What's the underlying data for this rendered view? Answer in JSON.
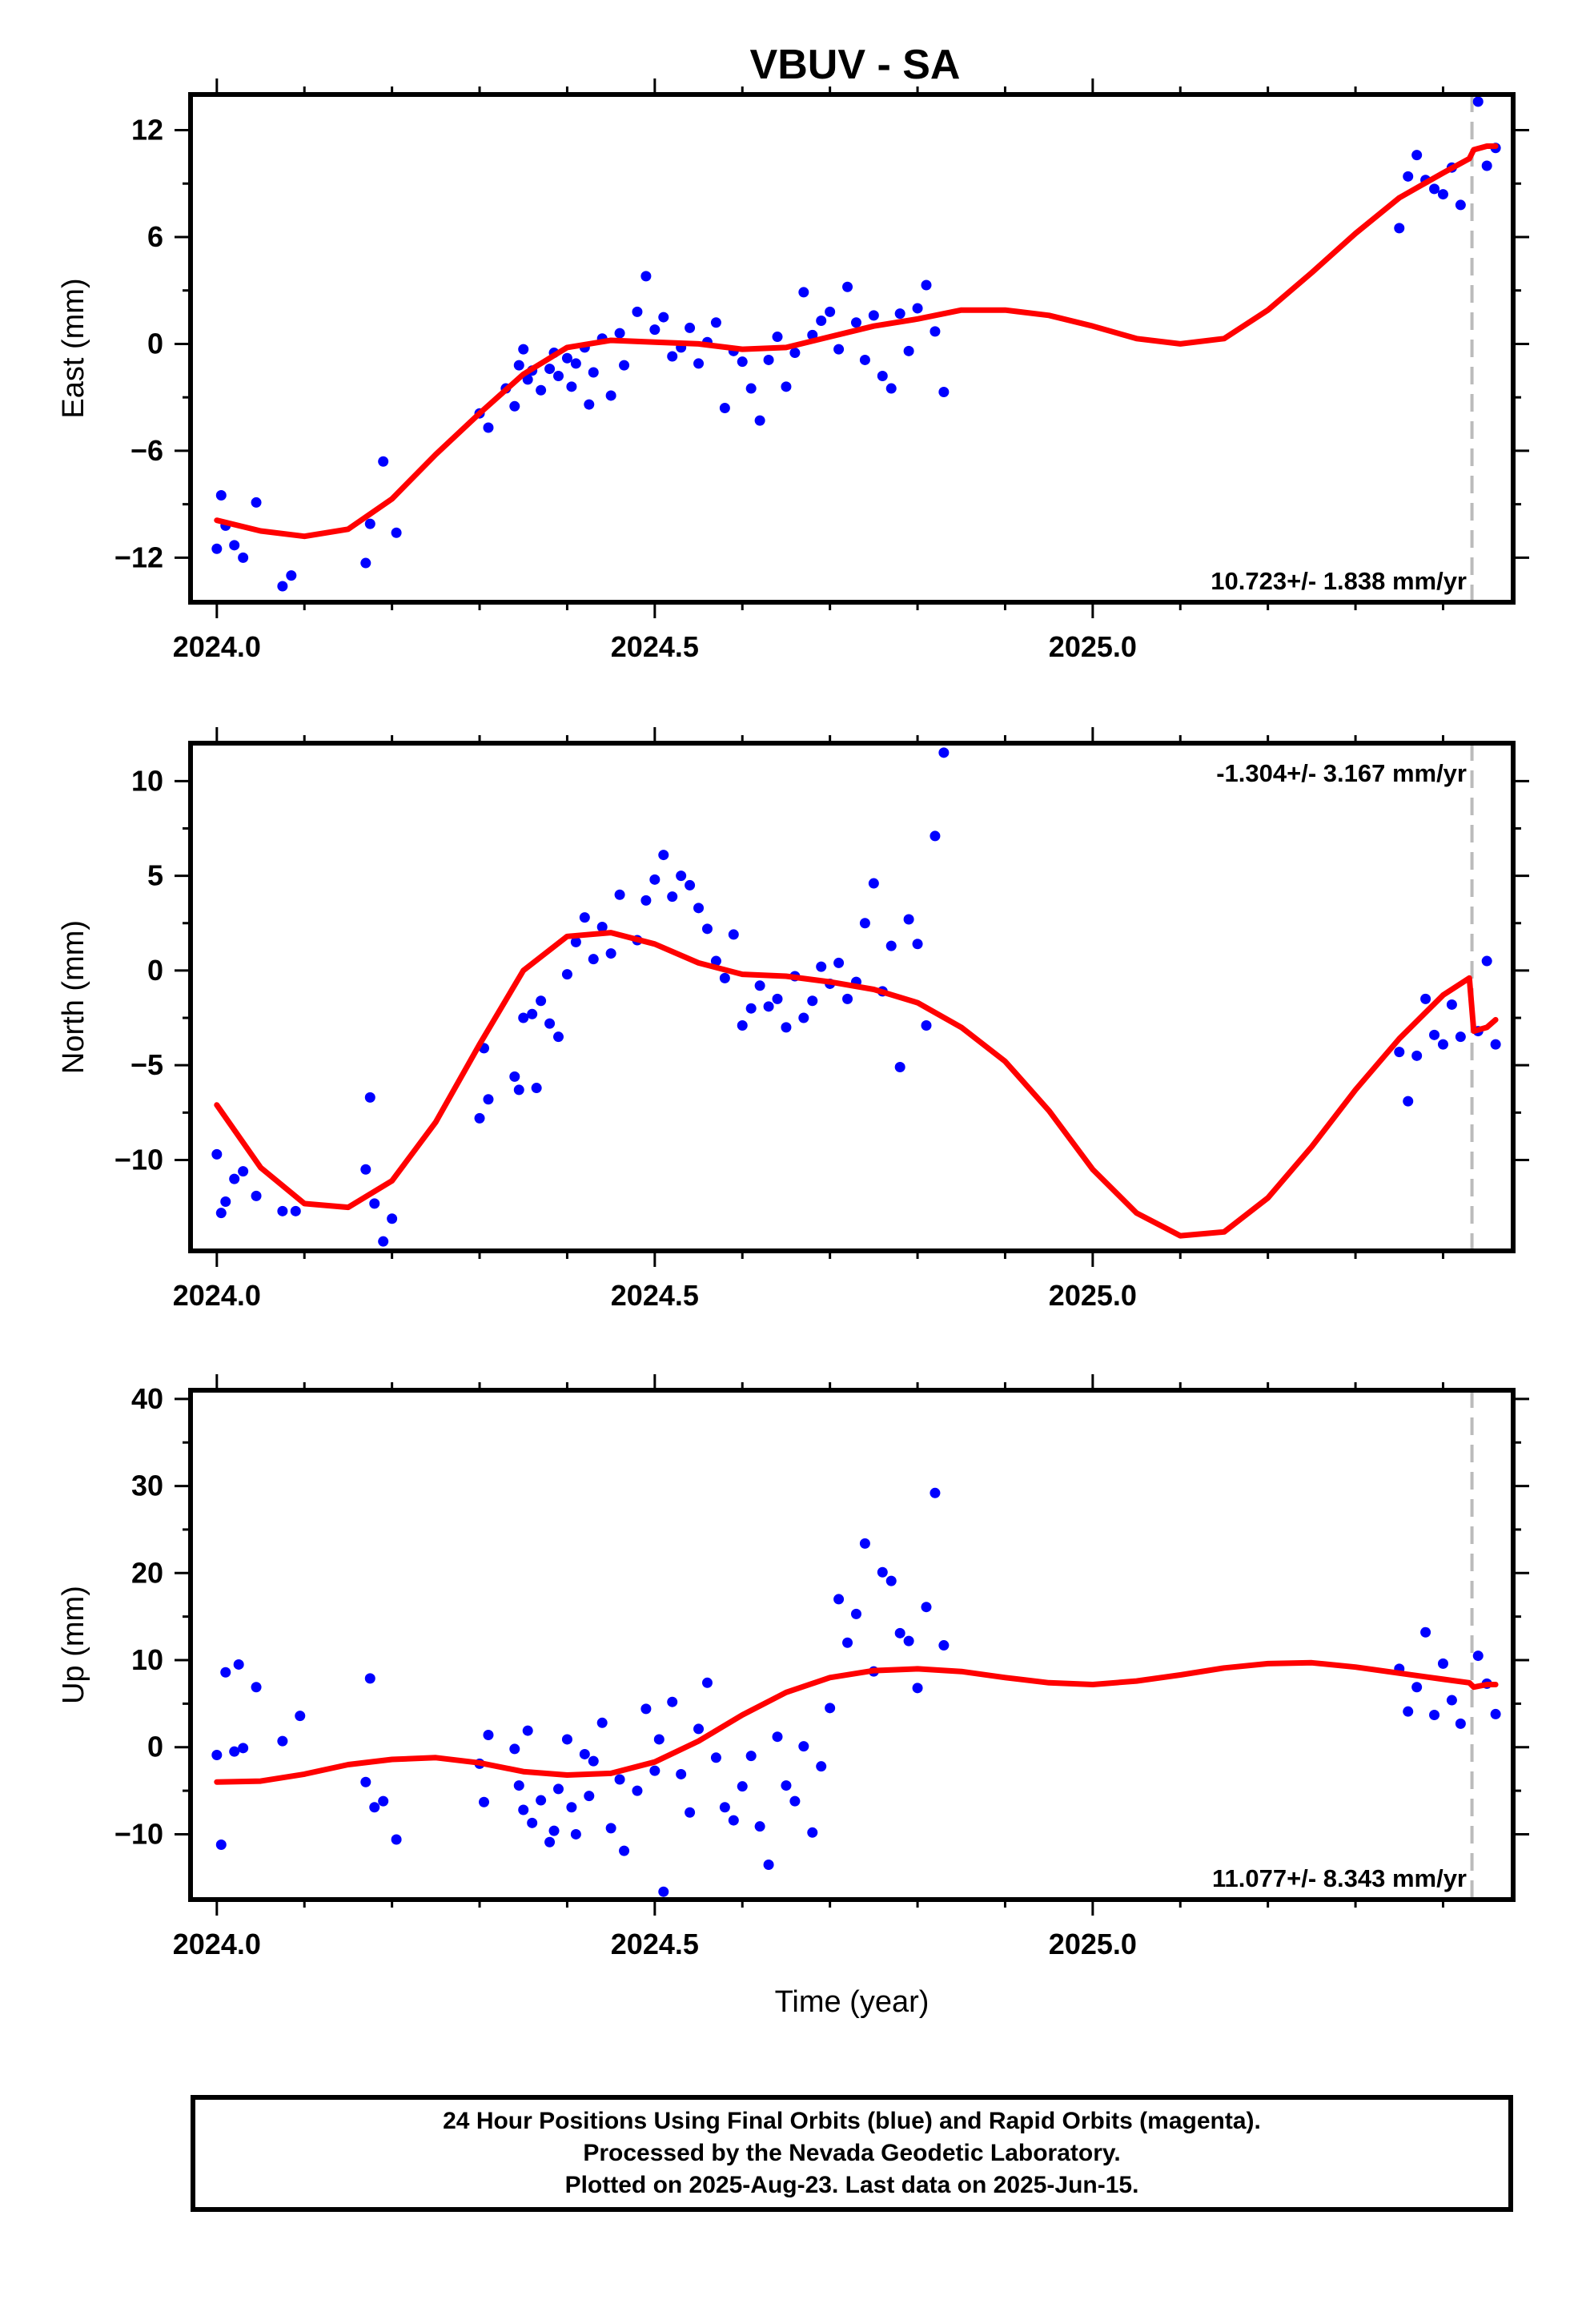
{
  "figure": {
    "title": "VBUV - SA",
    "xlabel": "Time (year)",
    "x_ticks": [
      2024.0,
      2024.5,
      2025.0
    ],
    "x_tick_labels": [
      "2024.0",
      "2024.5",
      "2025.0"
    ],
    "xlim": [
      2023.97,
      2025.48
    ],
    "colors": {
      "points": "#0000ff",
      "model": "#ff0000",
      "frame": "#000000",
      "marker_line": "#bbbbbb"
    },
    "last_data_marker": 2025.433
  },
  "chart_data": [
    {
      "type": "scatter",
      "panel": "east",
      "ylabel": "East (mm)",
      "ylim": [
        -14.5,
        14
      ],
      "y_ticks": [
        -12,
        -6,
        0,
        6,
        12
      ],
      "rate_text": "10.723+/- 1.838 mm/yr",
      "rate_position": "bottom-right",
      "series": [
        {
          "kind": "points",
          "x": [
            2024.0,
            2024.005,
            2024.01,
            2024.02,
            2024.03,
            2024.045,
            2024.075,
            2024.085,
            2024.17,
            2024.175,
            2024.19,
            2024.205,
            2024.3,
            2024.31,
            2024.33,
            2024.34,
            2024.345,
            2024.35,
            2024.355,
            2024.36,
            2024.37,
            2024.38,
            2024.385,
            2024.39,
            2024.4,
            2024.405,
            2024.41,
            2024.42,
            2024.425,
            2024.43,
            2024.44,
            2024.45,
            2024.46,
            2024.465,
            2024.48,
            2024.49,
            2024.5,
            2024.51,
            2024.52,
            2024.53,
            2024.54,
            2024.55,
            2024.56,
            2024.57,
            2024.58,
            2024.59,
            2024.6,
            2024.61,
            2024.62,
            2024.63,
            2024.64,
            2024.65,
            2024.66,
            2024.67,
            2024.68,
            2024.69,
            2024.7,
            2024.71,
            2024.72,
            2024.73,
            2024.74,
            2024.75,
            2024.76,
            2024.77,
            2024.78,
            2024.79,
            2024.8,
            2024.81,
            2024.82,
            2024.83,
            2025.35,
            2025.36,
            2025.37,
            2025.38,
            2025.39,
            2025.4,
            2025.41,
            2025.42,
            2025.44,
            2025.45,
            2025.46
          ],
          "y": [
            -11.5,
            -8.5,
            -10.2,
            -11.3,
            -12,
            -8.9,
            -13.6,
            -13,
            -12.3,
            -10.1,
            -6.6,
            -10.6,
            -3.9,
            -4.7,
            -2.5,
            -3.5,
            -1.2,
            -0.3,
            -2,
            -1.5,
            -2.6,
            -1.4,
            -0.5,
            -1.8,
            -0.8,
            -2.4,
            -1.1,
            -0.2,
            -3.4,
            -1.6,
            0.3,
            -2.9,
            0.6,
            -1.2,
            1.8,
            3.8,
            0.8,
            1.5,
            -0.7,
            -0.2,
            0.9,
            -1.1,
            0.1,
            1.2,
            -3.6,
            -0.4,
            -1,
            -2.5,
            -4.3,
            -0.9,
            0.4,
            -2.4,
            -0.5,
            2.9,
            0.5,
            1.3,
            1.8,
            -0.3,
            3.2,
            1.2,
            -0.9,
            1.6,
            -1.8,
            -2.5,
            1.7,
            -0.4,
            2,
            3.3,
            0.7,
            -2.7,
            6.5,
            9.4,
            10.6,
            9.2,
            8.7,
            8.4,
            9.9,
            7.8,
            13.6,
            10,
            11
          ]
        },
        {
          "kind": "model",
          "x": [
            2024.0,
            2024.05,
            2024.1,
            2024.15,
            2024.2,
            2024.25,
            2024.3,
            2024.35,
            2024.4,
            2024.45,
            2024.5,
            2024.55,
            2024.6,
            2024.65,
            2024.7,
            2024.75,
            2024.8,
            2024.85,
            2024.9,
            2024.95,
            2025.0,
            2025.05,
            2025.1,
            2025.15,
            2025.2,
            2025.25,
            2025.3,
            2025.35,
            2025.4,
            2025.43,
            2025.435,
            2025.45,
            2025.46
          ],
          "y": [
            -9.9,
            -10.5,
            -10.8,
            -10.4,
            -8.7,
            -6.2,
            -3.9,
            -1.7,
            -0.2,
            0.2,
            0.1,
            0,
            -0.3,
            -0.2,
            0.4,
            1,
            1.4,
            1.9,
            1.9,
            1.6,
            1,
            0.3,
            0,
            0.3,
            1.9,
            4,
            6.2,
            8.2,
            9.6,
            10.4,
            10.9,
            11.1,
            11.1
          ]
        }
      ]
    },
    {
      "type": "scatter",
      "panel": "north",
      "ylabel": "North (mm)",
      "ylim": [
        -14.8,
        12
      ],
      "y_ticks": [
        -10,
        -5,
        0,
        5,
        10
      ],
      "rate_text": "-1.304+/- 3.167 mm/yr",
      "rate_position": "top-right",
      "series": [
        {
          "kind": "points",
          "x": [
            2024.0,
            2024.005,
            2024.01,
            2024.02,
            2024.03,
            2024.045,
            2024.075,
            2024.09,
            2024.17,
            2024.175,
            2024.18,
            2024.19,
            2024.2,
            2024.3,
            2024.305,
            2024.31,
            2024.34,
            2024.345,
            2024.35,
            2024.36,
            2024.365,
            2024.37,
            2024.38,
            2024.39,
            2024.4,
            2024.41,
            2024.42,
            2024.43,
            2024.44,
            2024.45,
            2024.46,
            2024.48,
            2024.49,
            2024.5,
            2024.51,
            2024.52,
            2024.53,
            2024.54,
            2024.55,
            2024.56,
            2024.57,
            2024.58,
            2024.59,
            2024.6,
            2024.61,
            2024.62,
            2024.63,
            2024.64,
            2024.65,
            2024.66,
            2024.67,
            2024.68,
            2024.69,
            2024.7,
            2024.71,
            2024.72,
            2024.73,
            2024.74,
            2024.75,
            2024.76,
            2024.77,
            2024.78,
            2024.79,
            2024.8,
            2024.81,
            2024.82,
            2024.83,
            2025.35,
            2025.36,
            2025.37,
            2025.38,
            2025.39,
            2025.4,
            2025.41,
            2025.42,
            2025.44,
            2025.45,
            2025.46
          ],
          "y": [
            -9.7,
            -12.8,
            -12.2,
            -11,
            -10.6,
            -11.9,
            -12.7,
            -12.7,
            -10.5,
            -6.7,
            -12.3,
            -14.3,
            -13.1,
            -7.8,
            -4.1,
            -6.8,
            -5.6,
            -6.3,
            -2.5,
            -2.3,
            -6.2,
            -1.6,
            -2.8,
            -3.5,
            -0.2,
            1.5,
            2.8,
            0.6,
            2.3,
            0.9,
            4,
            1.6,
            3.7,
            4.8,
            6.1,
            3.9,
            5,
            4.5,
            3.3,
            2.2,
            0.5,
            -0.4,
            1.9,
            -2.9,
            -2,
            -0.8,
            -1.9,
            -1.5,
            -3,
            -0.3,
            -2.5,
            -1.6,
            0.2,
            -0.7,
            0.4,
            -1.5,
            -0.6,
            2.5,
            4.6,
            -1.1,
            1.3,
            -5.1,
            2.7,
            1.4,
            -2.9,
            7.1,
            11.5,
            -4.3,
            -6.9,
            -4.5,
            -1.5,
            -3.4,
            -3.9,
            -1.8,
            -3.5,
            -3.2,
            0.5,
            -3.9
          ]
        },
        {
          "kind": "model",
          "x": [
            2024.0,
            2024.05,
            2024.1,
            2024.15,
            2024.2,
            2024.25,
            2024.3,
            2024.35,
            2024.4,
            2024.45,
            2024.5,
            2024.55,
            2024.6,
            2024.65,
            2024.7,
            2024.75,
            2024.8,
            2024.85,
            2024.9,
            2024.95,
            2025.0,
            2025.05,
            2025.1,
            2025.15,
            2025.2,
            2025.25,
            2025.3,
            2025.35,
            2025.4,
            2025.43,
            2025.435,
            2025.45,
            2025.46
          ],
          "y": [
            -7.1,
            -10.4,
            -12.3,
            -12.5,
            -11.1,
            -8,
            -3.9,
            0,
            1.8,
            2,
            1.4,
            0.4,
            -0.2,
            -0.3,
            -0.6,
            -1,
            -1.7,
            -3,
            -4.8,
            -7.4,
            -10.5,
            -12.8,
            -14,
            -13.8,
            -12,
            -9.3,
            -6.3,
            -3.6,
            -1.3,
            -0.4,
            -3.2,
            -3,
            -2.6
          ]
        }
      ]
    },
    {
      "type": "scatter",
      "panel": "up",
      "ylabel": "Up (mm)",
      "ylim": [
        -17.5,
        41
      ],
      "y_ticks": [
        -10,
        0,
        10,
        20,
        30,
        40
      ],
      "rate_text": "11.077+/- 8.343 mm/yr",
      "rate_position": "bottom-right",
      "series": [
        {
          "kind": "points",
          "x": [
            2024.0,
            2024.005,
            2024.01,
            2024.02,
            2024.025,
            2024.03,
            2024.045,
            2024.075,
            2024.095,
            2024.17,
            2024.175,
            2024.18,
            2024.19,
            2024.205,
            2024.3,
            2024.305,
            2024.31,
            2024.34,
            2024.345,
            2024.35,
            2024.355,
            2024.36,
            2024.37,
            2024.38,
            2024.385,
            2024.39,
            2024.4,
            2024.405,
            2024.41,
            2024.42,
            2024.425,
            2024.43,
            2024.44,
            2024.45,
            2024.46,
            2024.465,
            2024.48,
            2024.49,
            2024.5,
            2024.505,
            2024.51,
            2024.52,
            2024.53,
            2024.54,
            2024.55,
            2024.56,
            2024.57,
            2024.58,
            2024.59,
            2024.6,
            2024.61,
            2024.62,
            2024.63,
            2024.64,
            2024.65,
            2024.66,
            2024.67,
            2024.68,
            2024.69,
            2024.7,
            2024.71,
            2024.72,
            2024.73,
            2024.74,
            2024.75,
            2024.76,
            2024.77,
            2024.78,
            2024.79,
            2024.8,
            2024.81,
            2024.82,
            2024.83,
            2025.35,
            2025.36,
            2025.37,
            2025.38,
            2025.39,
            2025.4,
            2025.41,
            2025.42,
            2025.44,
            2025.45,
            2025.46
          ],
          "y": [
            -0.9,
            -11.2,
            8.6,
            -0.5,
            9.5,
            -0.1,
            6.9,
            0.7,
            3.6,
            -4,
            7.9,
            -6.9,
            -6.2,
            -10.6,
            -1.9,
            -6.3,
            1.4,
            -0.2,
            -4.4,
            -7.2,
            1.9,
            -8.7,
            -6.1,
            -10.9,
            -9.6,
            -4.8,
            0.9,
            -6.9,
            -10,
            -0.8,
            -5.6,
            -1.6,
            2.8,
            -9.3,
            -3.7,
            -11.9,
            -5,
            4.4,
            -2.7,
            0.9,
            -16.6,
            5.2,
            -3.1,
            -7.5,
            2.1,
            7.4,
            -1.2,
            -6.9,
            -8.4,
            -4.5,
            -1,
            -9.1,
            -13.5,
            1.2,
            -4.4,
            -6.2,
            0.1,
            -9.8,
            -2.2,
            4.5,
            17,
            12,
            15.3,
            23.4,
            8.7,
            20.1,
            19.1,
            13.1,
            12.2,
            6.8,
            16.1,
            29.2,
            11.7,
            9,
            4.1,
            6.9,
            13.2,
            3.7,
            9.6,
            5.4,
            2.7,
            10.5,
            7.3,
            3.8
          ]
        },
        {
          "kind": "model",
          "x": [
            2024.0,
            2024.05,
            2024.1,
            2024.15,
            2024.2,
            2024.25,
            2024.3,
            2024.35,
            2024.4,
            2024.45,
            2024.5,
            2024.55,
            2024.6,
            2024.65,
            2024.7,
            2024.75,
            2024.8,
            2024.85,
            2024.9,
            2024.95,
            2025.0,
            2025.05,
            2025.1,
            2025.15,
            2025.2,
            2025.25,
            2025.3,
            2025.35,
            2025.4,
            2025.43,
            2025.435,
            2025.45,
            2025.46
          ],
          "y": [
            -4,
            -3.9,
            -3.1,
            -2,
            -1.4,
            -1.2,
            -1.8,
            -2.8,
            -3.2,
            -3,
            -1.7,
            0.7,
            3.7,
            6.3,
            8,
            8.8,
            9,
            8.7,
            8,
            7.4,
            7.2,
            7.6,
            8.3,
            9.1,
            9.6,
            9.7,
            9.2,
            8.5,
            7.8,
            7.4,
            6.9,
            7.2,
            7.2
          ]
        }
      ]
    }
  ],
  "footer": {
    "line1": "24 Hour Positions Using Final Orbits (blue) and Rapid Orbits (magenta).",
    "line2": "Processed by the Nevada Geodetic Laboratory.",
    "line3": "Plotted on 2025-Aug-23. Last data on 2025-Jun-15."
  }
}
